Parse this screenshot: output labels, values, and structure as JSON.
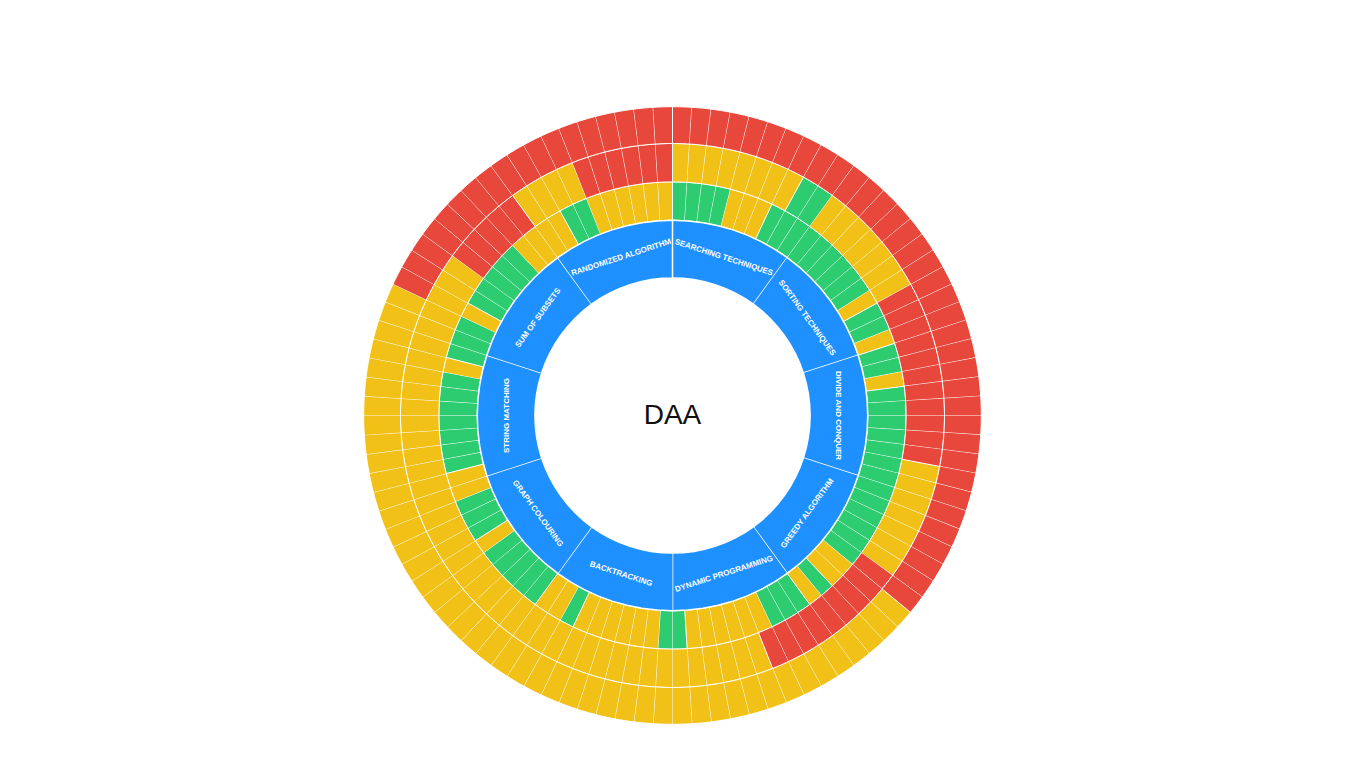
{
  "chart_data": {
    "type": "sunburst",
    "title": "DAA",
    "tick_labels": false,
    "color": "#1e90ff",
    "categories": [
      "SEARCHING TECHNIQUES",
      "SORTING TECHNIQUES",
      "DIVIDE AND CONQUER",
      "GREEDY ALGORITHM",
      "DYNAMIC PROGRAMMING",
      "BACKTRACKING",
      "GRAPH COLOURING",
      "STRING MATCHING",
      "SUM OF SUBSETS",
      "RANDOMIZED ALGORITHM"
    ],
    "cells": [
      [
        [
          "#2ecc71",
          "#2ecc71",
          "#2ecc71",
          "#2ecc71",
          "#f2c117",
          "#f2c117",
          "#f2c117",
          "#2ecc71",
          "#2ecc71",
          "#2ecc71"
        ],
        [
          "#f2c117",
          "#f2c117",
          "#f2c117",
          "#f2c117",
          "#f2c117",
          "#f2c117",
          "#f2c117",
          "#f2c117",
          "#2ecc71",
          "#2ecc71"
        ],
        [
          "#e8483b",
          "#e8483b",
          "#e8483b",
          "#e8483b",
          "#e8483b",
          "#e8483b",
          "#e8483b",
          "#e8483b",
          "#e8483b",
          "#e8483b"
        ]
      ],
      [
        [
          "#2ecc71",
          "#2ecc71",
          "#2ecc71",
          "#2ecc71",
          "#2ecc71",
          "#2ecc71",
          "#f2c117",
          "#2ecc71",
          "#2ecc71",
          "#f2c117"
        ],
        [
          "#f2c117",
          "#f2c117",
          "#f2c117",
          "#f2c117",
          "#f2c117",
          "#f2c117",
          "#f2c117",
          "#e8483b",
          "#e8483b",
          "#e8483b"
        ],
        [
          "#e8483b",
          "#e8483b",
          "#e8483b",
          "#e8483b",
          "#e8483b",
          "#e8483b",
          "#e8483b",
          "#e8483b",
          "#e8483b",
          "#e8483b"
        ]
      ],
      [
        [
          "#2ecc71",
          "#2ecc71",
          "#f2c117",
          "#2ecc71",
          "#2ecc71",
          "#2ecc71",
          "#2ecc71",
          "#2ecc71",
          "#2ecc71",
          "#2ecc71"
        ],
        [
          "#e8483b",
          "#e8483b",
          "#e8483b",
          "#e8483b",
          "#e8483b",
          "#e8483b",
          "#e8483b",
          "#e8483b",
          "#f2c117",
          "#f2c117"
        ],
        [
          "#e8483b",
          "#e8483b",
          "#e8483b",
          "#e8483b",
          "#e8483b",
          "#e8483b",
          "#e8483b",
          "#e8483b",
          "#e8483b",
          "#e8483b"
        ]
      ],
      [
        [
          "#2ecc71",
          "#2ecc71",
          "#2ecc71",
          "#2ecc71",
          "#2ecc71",
          "#2ecc71",
          "#f2c117",
          "#f2c117",
          "#2ecc71",
          "#f2c117"
        ],
        [
          "#f2c117",
          "#f2c117",
          "#f2c117",
          "#f2c117",
          "#f2c117",
          "#e8483b",
          "#e8483b",
          "#e8483b",
          "#e8483b",
          "#e8483b"
        ],
        [
          "#e8483b",
          "#e8483b",
          "#e8483b",
          "#e8483b",
          "#e8483b",
          "#e8483b",
          "#f2c117",
          "#f2c117",
          "#f2c117",
          "#f2c117"
        ]
      ],
      [
        [
          "#2ecc71",
          "#2ecc71",
          "#2ecc71",
          "#f2c117",
          "#f2c117",
          "#f2c117",
          "#f2c117",
          "#f2c117",
          "#f2c117",
          "#2ecc71"
        ],
        [
          "#e8483b",
          "#e8483b",
          "#e8483b",
          "#e8483b",
          "#f2c117",
          "#f2c117",
          "#f2c117",
          "#f2c117",
          "#f2c117",
          "#f2c117"
        ],
        [
          "#f2c117",
          "#f2c117",
          "#f2c117",
          "#f2c117",
          "#f2c117",
          "#f2c117",
          "#f2c117",
          "#f2c117",
          "#f2c117",
          "#f2c117"
        ]
      ],
      [
        [
          "#2ecc71",
          "#f2c117",
          "#f2c117",
          "#f2c117",
          "#f2c117",
          "#f2c117",
          "#f2c117",
          "#2ecc71",
          "#f2c117",
          "#f2c117"
        ],
        [
          "#f2c117",
          "#f2c117",
          "#f2c117",
          "#f2c117",
          "#f2c117",
          "#f2c117",
          "#f2c117",
          "#f2c117",
          "#f2c117",
          "#f2c117"
        ],
        [
          "#f2c117",
          "#f2c117",
          "#f2c117",
          "#f2c117",
          "#f2c117",
          "#f2c117",
          "#f2c117",
          "#f2c117",
          "#f2c117",
          "#f2c117"
        ]
      ],
      [
        [
          "#2ecc71",
          "#2ecc71",
          "#2ecc71",
          "#2ecc71",
          "#2ecc71",
          "#f2c117",
          "#2ecc71",
          "#2ecc71",
          "#2ecc71",
          "#f2c117"
        ],
        [
          "#f2c117",
          "#f2c117",
          "#f2c117",
          "#f2c117",
          "#f2c117",
          "#f2c117",
          "#f2c117",
          "#f2c117",
          "#f2c117",
          "#f2c117"
        ],
        [
          "#f2c117",
          "#f2c117",
          "#f2c117",
          "#f2c117",
          "#f2c117",
          "#f2c117",
          "#f2c117",
          "#f2c117",
          "#f2c117",
          "#f2c117"
        ]
      ],
      [
        [
          "#f2c117",
          "#2ecc71",
          "#2ecc71",
          "#2ecc71",
          "#2ecc71",
          "#2ecc71",
          "#2ecc71",
          "#2ecc71",
          "#f2c117",
          "#2ecc71"
        ],
        [
          "#f2c117",
          "#f2c117",
          "#f2c117",
          "#f2c117",
          "#f2c117",
          "#f2c117",
          "#f2c117",
          "#f2c117",
          "#f2c117",
          "#f2c117"
        ],
        [
          "#f2c117",
          "#f2c117",
          "#f2c117",
          "#f2c117",
          "#f2c117",
          "#f2c117",
          "#f2c117",
          "#f2c117",
          "#f2c117",
          "#f2c117"
        ]
      ],
      [
        [
          "#2ecc71",
          "#2ecc71",
          "#f2c117",
          "#2ecc71",
          "#2ecc71",
          "#2ecc71",
          "#2ecc71",
          "#2ecc71",
          "#f2c117",
          "#f2c117"
        ],
        [
          "#f2c117",
          "#f2c117",
          "#f2c117",
          "#f2c117",
          "#f2c117",
          "#e8483b",
          "#e8483b",
          "#e8483b",
          "#e8483b",
          "#e8483b"
        ],
        [
          "#f2c117",
          "#f2c117",
          "#e8483b",
          "#e8483b",
          "#e8483b",
          "#e8483b",
          "#e8483b",
          "#e8483b",
          "#e8483b",
          "#e8483b"
        ]
      ],
      [
        [
          "#f2c117",
          "#f2c117",
          "#2ecc71",
          "#2ecc71",
          "#f2c117",
          "#f2c117",
          "#f2c117",
          "#f2c117",
          "#f2c117",
          "#f2c117"
        ],
        [
          "#f2c117",
          "#f2c117",
          "#f2c117",
          "#f2c117",
          "#e8483b",
          "#e8483b",
          "#e8483b",
          "#e8483b",
          "#e8483b",
          "#e8483b"
        ],
        [
          "#e8483b",
          "#e8483b",
          "#e8483b",
          "#e8483b",
          "#e8483b",
          "#e8483b",
          "#e8483b",
          "#e8483b",
          "#e8483b",
          "#e8483b"
        ]
      ]
    ]
  }
}
